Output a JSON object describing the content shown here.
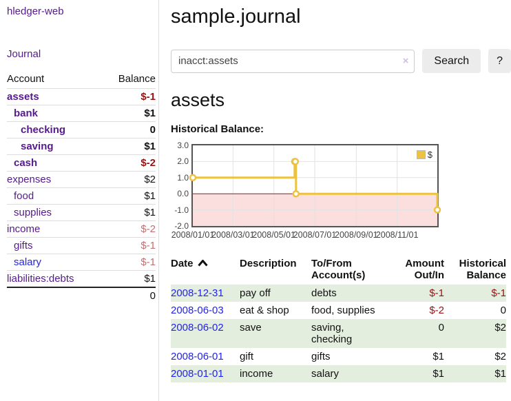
{
  "sidebar": {
    "app_title": "hledger-web",
    "journal_label": "Journal",
    "accounts_table": {
      "col_account": "Account",
      "col_balance": "Balance",
      "rows": [
        {
          "name": "assets",
          "level": 0,
          "matched": true,
          "balance": "$-1"
        },
        {
          "name": "bank",
          "level": 1,
          "matched": true,
          "balance": "$1"
        },
        {
          "name": "checking",
          "level": 2,
          "matched": true,
          "balance": "0"
        },
        {
          "name": "saving",
          "level": 2,
          "matched": true,
          "balance": "$1"
        },
        {
          "name": "cash",
          "level": 1,
          "matched": true,
          "balance": "$-2"
        },
        {
          "name": "expenses",
          "level": 0,
          "matched": false,
          "balance": "$2"
        },
        {
          "name": "food",
          "level": 1,
          "matched": false,
          "balance": "$1"
        },
        {
          "name": "supplies",
          "level": 1,
          "matched": false,
          "balance": "$1"
        },
        {
          "name": "income",
          "level": 0,
          "matched": false,
          "balance": "$-2"
        },
        {
          "name": "gifts",
          "level": 1,
          "matched": false,
          "balance": "$-1"
        },
        {
          "name": "salary",
          "level": 1,
          "matched": false,
          "balance": "$-1",
          "unvisited": true
        },
        {
          "name": "liabilities:debts",
          "level": 0,
          "matched": false,
          "balance": "$1"
        }
      ],
      "total": "0"
    }
  },
  "header": {
    "title": "sample.journal",
    "search": {
      "value": "inacct:assets",
      "clear_icon": "×",
      "search_button": "Search",
      "help_button": "?"
    }
  },
  "main": {
    "account_heading": "assets",
    "chart_label": "Historical Balance:",
    "register": {
      "headers": {
        "date": "Date",
        "description": "Description",
        "tofrom": "To/From\nAccount(s)",
        "amount": "Amount\nOut/In",
        "balance": "Historical\nBalance"
      },
      "rows": [
        {
          "date": "2008-12-31",
          "description": "pay off",
          "accounts": "debts",
          "amount": "$-1",
          "balance": "$-1"
        },
        {
          "date": "2008-06-03",
          "description": "eat & shop",
          "accounts": "food, supplies",
          "amount": "$-2",
          "balance": "0"
        },
        {
          "date": "2008-06-02",
          "description": "save",
          "accounts": "saving,\nchecking",
          "amount": "0",
          "balance": "$2"
        },
        {
          "date": "2008-06-01",
          "description": "gift",
          "accounts": "gifts",
          "amount": "$1",
          "balance": "$2"
        },
        {
          "date": "2008-01-01",
          "description": "income",
          "accounts": "salary",
          "amount": "$1",
          "balance": "$1"
        }
      ]
    }
  },
  "chart_data": {
    "type": "line",
    "title": "Historical Balance",
    "step": true,
    "legend": [
      {
        "label": "$",
        "color": "#edc240"
      }
    ],
    "legend_position": "top-right",
    "x_start": "2008-01-01",
    "x_end": "2008-12-31",
    "points": [
      {
        "date": "2008-01-01",
        "value": 1
      },
      {
        "date": "2008-06-01",
        "value": 2
      },
      {
        "date": "2008-06-02",
        "value": 2
      },
      {
        "date": "2008-06-03",
        "value": 0
      },
      {
        "date": "2008-12-31",
        "value": -1
      }
    ],
    "ylim": [
      -2,
      3
    ],
    "yticks": [
      3.0,
      2.0,
      1.0,
      0.0,
      -1.0,
      -2.0
    ],
    "xticks": [
      {
        "date": "2008-01-01",
        "label": "2008/01/01"
      },
      {
        "date": "2008-03-01",
        "label": "2008/03/01"
      },
      {
        "date": "2008-05-01",
        "label": "2008/05/01"
      },
      {
        "date": "2008-07-01",
        "label": "2008/07/01"
      },
      {
        "date": "2008-09-01",
        "label": "2008/09/01"
      },
      {
        "date": "2008-11-01",
        "label": "2008/11/01"
      }
    ],
    "grid": true,
    "colors": {
      "line": "#edc240",
      "marker_fill": "#ffffff",
      "negative_fill": "#fbdede",
      "zero_line": "#8b1a1a",
      "grid": "#e2e2e2",
      "border": "#545454"
    }
  }
}
